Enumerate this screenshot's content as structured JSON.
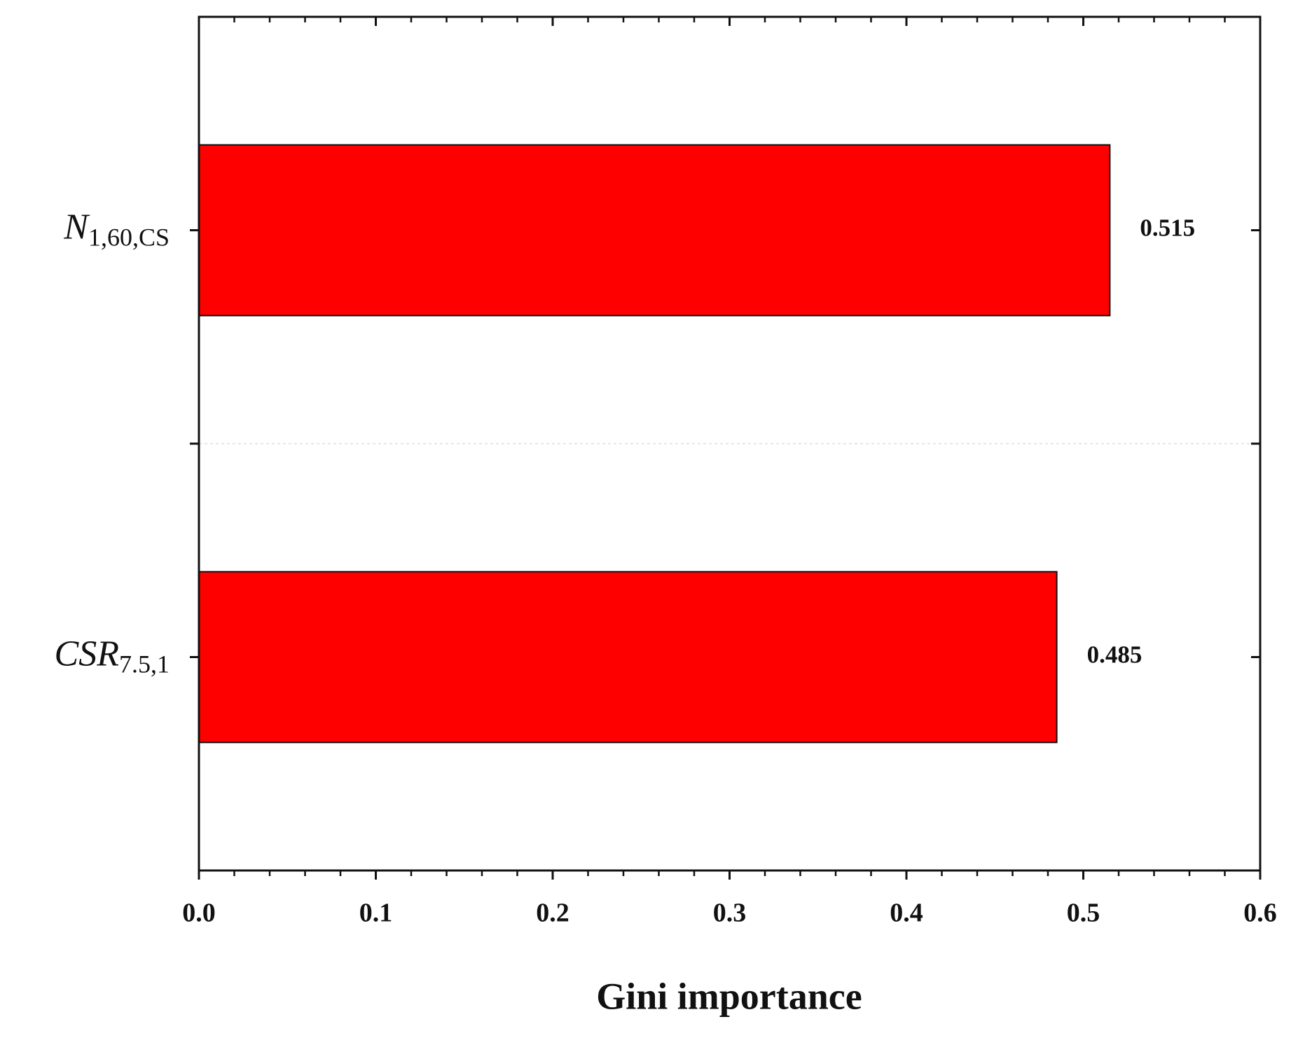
{
  "chart_data": {
    "type": "barh",
    "x_label": "Gini importance",
    "categories": [
      {
        "main": "N",
        "sub": "1,60,CS"
      },
      {
        "main": "CSR",
        "sub": "7.5,1"
      }
    ],
    "values": [
      0.515,
      0.485
    ],
    "color": "#ff0000",
    "xlim": [
      0,
      0.6
    ],
    "xticks": [
      {
        "value": 0,
        "label": "0.0"
      },
      0.1,
      0.2,
      0.3,
      0.4,
      0.5,
      0.6
    ],
    "x_minor_per_interval": 5,
    "category_separator": true
  }
}
